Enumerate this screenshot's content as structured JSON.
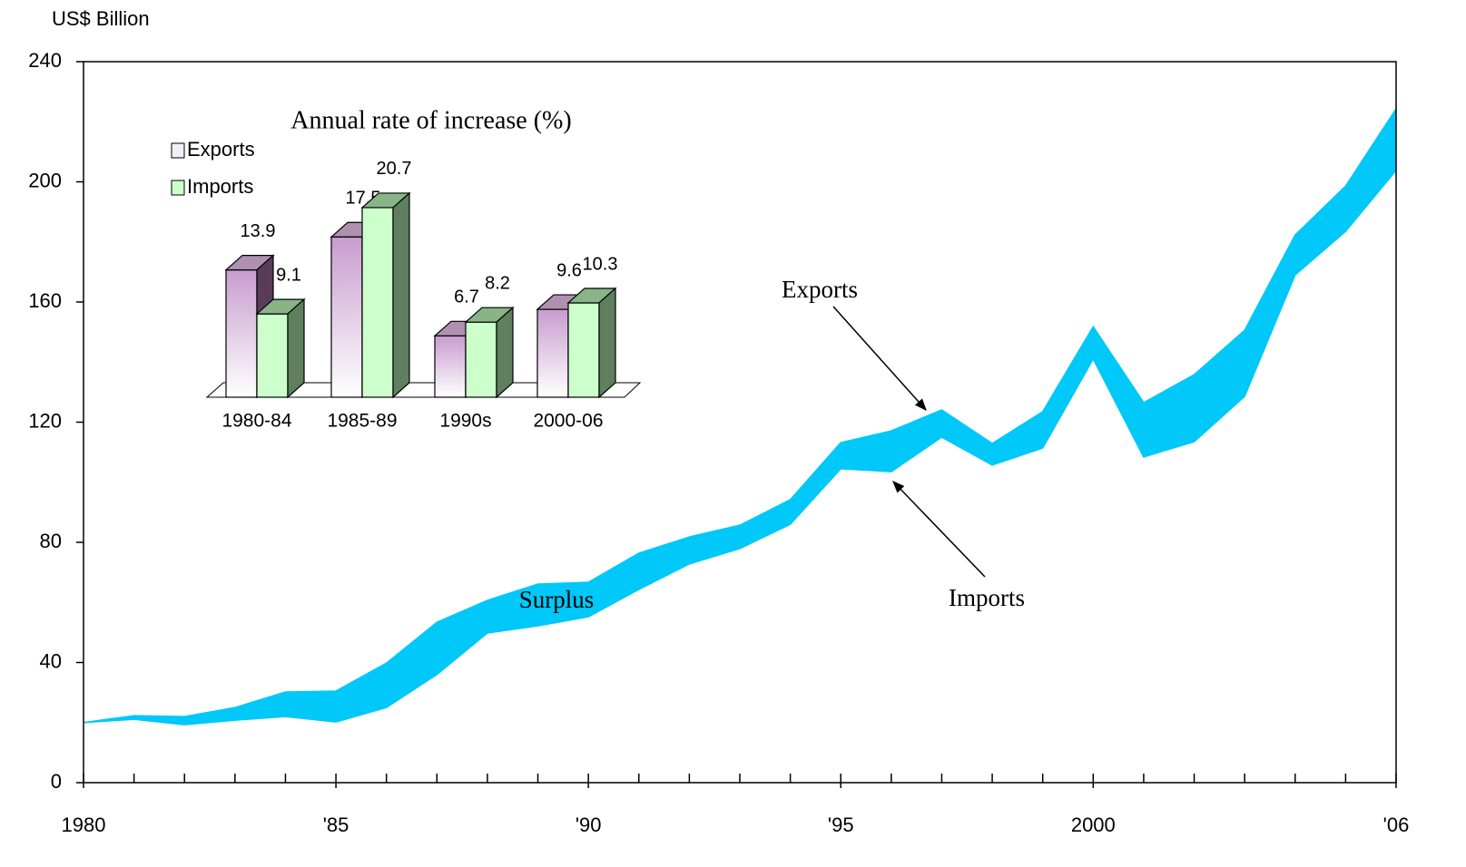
{
  "chart_data": [
    {
      "type": "band",
      "y_axis_label": "US$ Billion",
      "x": [
        1980,
        1981,
        1982,
        1983,
        1984,
        1985,
        1986,
        1987,
        1988,
        1989,
        1990,
        1991,
        1992,
        1993,
        1994,
        1995,
        1996,
        1997,
        1998,
        1999,
        2000,
        2001,
        2002,
        2003,
        2004,
        2005,
        2006
      ],
      "series": [
        {
          "name": "Exports",
          "color": "#00c8f8",
          "values": [
            20.0,
            22.3,
            22.0,
            25.0,
            30.2,
            30.5,
            39.8,
            53.4,
            60.7,
            66.1,
            66.7,
            76.4,
            81.8,
            85.7,
            94.2,
            113.2,
            117.1,
            124.1,
            112.9,
            123.5,
            151.8,
            126.5,
            135.8,
            150.6,
            182.3,
            198.6,
            224.3
          ]
        },
        {
          "name": "Imports",
          "color": "#00c8f8",
          "values": [
            20.0,
            21.1,
            19.3,
            20.8,
            22.0,
            20.2,
            25.0,
            36.0,
            49.8,
            52.2,
            55.2,
            64.3,
            72.8,
            77.9,
            86.0,
            104.5,
            103.5,
            115.0,
            105.7,
            111.4,
            141.0,
            108.4,
            113.5,
            128.6,
            169.0,
            183.5,
            203.8
          ]
        }
      ],
      "annotations": [
        "Surplus"
      ],
      "xlim": [
        1980,
        2006
      ],
      "xticks": [
        1980,
        {
          "value": 1985,
          "label": "'85"
        },
        {
          "value": 1990,
          "label": "'90"
        },
        {
          "value": 1995,
          "label": "'95"
        },
        2000,
        {
          "value": 2006,
          "label": "'06"
        }
      ],
      "ylim": [
        0,
        240
      ],
      "yticks": [
        0,
        40,
        80,
        120,
        160,
        200,
        240
      ]
    },
    {
      "type": "bar3d",
      "title": "Annual rate of increase (%)",
      "categories": [
        "1980-84",
        "1985-89",
        "1990s",
        "2000-06"
      ],
      "series": [
        {
          "name": "Exports",
          "color": "#c89ccf",
          "values": [
            13.9,
            17.5,
            6.7,
            9.6
          ]
        },
        {
          "name": "Imports",
          "color": "#ccffcc",
          "values": [
            9.1,
            20.7,
            8.2,
            10.3
          ]
        }
      ],
      "legend": "top-left"
    }
  ]
}
